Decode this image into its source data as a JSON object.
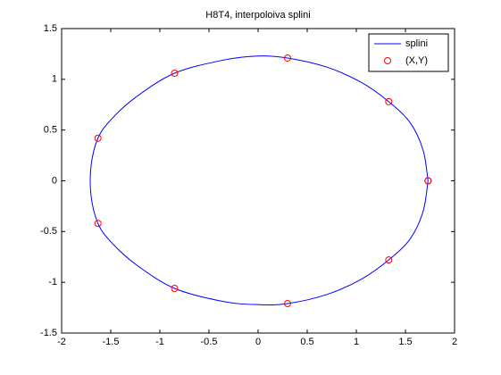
{
  "chart_data": {
    "type": "line",
    "title": "H8T4, interpoloiva splini",
    "xlim": [
      -2,
      2
    ],
    "ylim": [
      -1.5,
      1.5
    ],
    "xticks": [
      -2,
      -1.5,
      -1,
      -0.5,
      0,
      0.5,
      1,
      1.5,
      2
    ],
    "yticks": [
      -1.5,
      -1,
      -0.5,
      0,
      0.5,
      1,
      1.5
    ],
    "grid": false,
    "legend": "top-right",
    "series": [
      {
        "name": "splini",
        "color": "#0000ff",
        "kind": "line",
        "x": [
          1.73,
          1.68,
          1.55,
          1.33,
          1.05,
          0.7,
          0.3,
          0.0,
          -0.35,
          -0.85,
          -1.25,
          -1.5,
          -1.63,
          -1.7,
          -1.7,
          -1.63,
          -1.5,
          -1.25,
          -0.85,
          -0.35,
          0.0,
          0.3,
          0.7,
          1.05,
          1.33,
          1.55,
          1.68,
          1.73
        ],
        "values": [
          0,
          0.3,
          0.57,
          0.78,
          0.97,
          1.12,
          1.21,
          1.23,
          1.19,
          1.06,
          0.82,
          0.6,
          0.42,
          0.15,
          -0.15,
          -0.42,
          -0.6,
          -0.82,
          -1.06,
          -1.19,
          -1.22,
          -1.21,
          -1.12,
          -0.97,
          -0.78,
          -0.57,
          -0.3,
          0
        ]
      },
      {
        "name": "(X,Y)",
        "color": "#ff0000",
        "kind": "marker",
        "x": [
          1.73,
          1.33,
          0.3,
          -0.85,
          -1.63,
          -1.63,
          -0.85,
          0.3,
          1.33,
          1.73
        ],
        "values": [
          0,
          0.78,
          1.21,
          1.06,
          0.42,
          -0.42,
          -1.06,
          -1.21,
          -0.78,
          0
        ]
      }
    ]
  }
}
